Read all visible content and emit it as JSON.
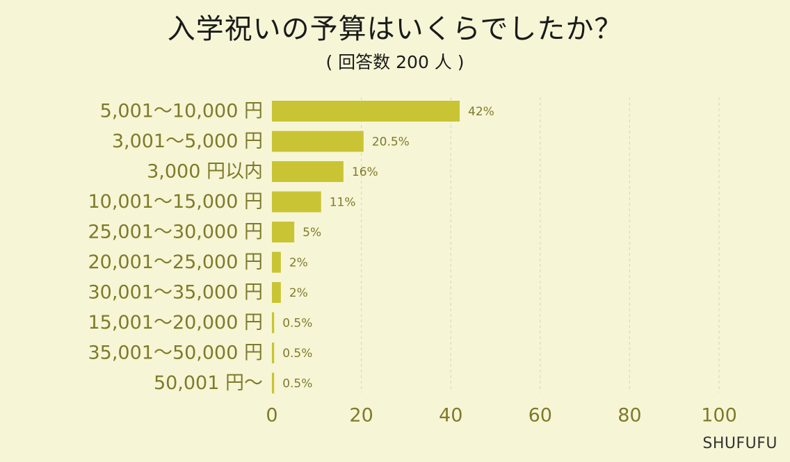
{
  "title": "入学祝いの予算はいくらでしたか？",
  "subtitle": "( 回答数 200 人 )",
  "brand": "SHUFUFU",
  "colors": {
    "background": "#f6f6d6",
    "bar": "#c9c433",
    "label_text": "#7f7a2a",
    "value_text": "#7f7a2a",
    "grid": "#d9d9c4"
  },
  "chart_data": {
    "type": "bar",
    "orientation": "horizontal",
    "categories": [
      "5,001〜10,000 円",
      "3,001〜5,000 円",
      "3,000 円以内",
      "10,001〜15,000 円",
      "25,001〜30,000 円",
      "20,001〜25,000 円",
      "30,001〜35,000 円",
      "15,001〜20,000 円",
      "35,001〜50,000 円",
      "50,001 円〜"
    ],
    "values": [
      42,
      20.5,
      16,
      11,
      5,
      2,
      2,
      0.5,
      0.5,
      0.5
    ],
    "value_labels": [
      "42%",
      "20.5%",
      "16%",
      "11%",
      "5%",
      "2%",
      "2%",
      "0.5%",
      "0.5%",
      "0.5%"
    ],
    "xlim": [
      0,
      100
    ],
    "xticks": [
      0,
      20,
      40,
      60,
      80,
      100
    ],
    "xtick_labels": [
      "0",
      "20",
      "40",
      "60",
      "80",
      "100"
    ],
    "grid": true,
    "grid_style": "dashed vertical",
    "legend": "none"
  }
}
